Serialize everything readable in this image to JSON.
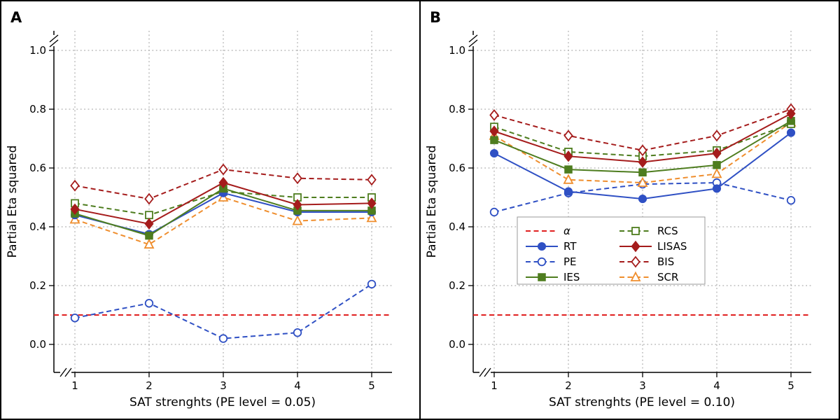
{
  "figure": {
    "background": "#ffffff",
    "border_color": "#000000"
  },
  "colors": {
    "alpha": "#e02020",
    "blue": "#2f50c4",
    "green": "#4e7d1f",
    "darkred": "#a51c1c",
    "orange": "#ef8e2e",
    "grid": "#999999",
    "axis": "#000000",
    "legend_border": "#999999"
  },
  "legend": {
    "columns": 2,
    "rows": 4,
    "entries": [
      {
        "label": "α",
        "series": "alpha",
        "color": "alpha",
        "line": "dashed",
        "marker": "none",
        "fill": "none",
        "italic": true
      },
      {
        "label": "RT",
        "series": "RT",
        "color": "blue",
        "line": "solid",
        "marker": "circle",
        "fill": "filled",
        "italic": false
      },
      {
        "label": "PE",
        "series": "PE",
        "color": "blue",
        "line": "dashed",
        "marker": "circle",
        "fill": "open",
        "italic": false
      },
      {
        "label": "IES",
        "series": "IES",
        "color": "green",
        "line": "solid",
        "marker": "square",
        "fill": "filled",
        "italic": false
      },
      {
        "label": "RCS",
        "series": "RCS",
        "color": "green",
        "line": "dashed",
        "marker": "square",
        "fill": "open",
        "italic": false
      },
      {
        "label": "LISAS",
        "series": "LISAS",
        "color": "darkred",
        "line": "solid",
        "marker": "diamond",
        "fill": "filled",
        "italic": false
      },
      {
        "label": "BIS",
        "series": "BIS",
        "color": "darkred",
        "line": "dashed",
        "marker": "diamond",
        "fill": "open",
        "italic": false
      },
      {
        "label": "SCR",
        "series": "SCR",
        "color": "orange",
        "line": "dashed",
        "marker": "triangle",
        "fill": "open",
        "italic": false
      }
    ]
  },
  "chart_data": [
    {
      "type": "line",
      "panel_label": "A",
      "xlabel": "SAT strenghts (PE level = 0.05)",
      "ylabel": "Partial Eta squared",
      "x": [
        1,
        2,
        3,
        4,
        5
      ],
      "xtick_labels": [
        "1",
        "2",
        "3",
        "4",
        "5"
      ],
      "yticks": [
        0,
        0.2,
        0.4,
        0.6,
        0.8,
        1
      ],
      "ytick_labels": [
        "0.0",
        "0.2",
        "0.4",
        "0.6",
        "0.8",
        "1.0"
      ],
      "ylim": [
        -0.1,
        1.17
      ],
      "grid": "dotted",
      "legend_visible": false,
      "series": [
        {
          "name": "alpha",
          "color": "alpha",
          "line": "dashed",
          "marker": "none",
          "fill": "none",
          "span": "plot",
          "values": [
            0.1,
            0.1,
            0.1,
            0.1,
            0.1
          ]
        },
        {
          "name": "PE",
          "color": "blue",
          "line": "dashed",
          "marker": "circle",
          "fill": "open",
          "span": "data",
          "values": [
            0.09,
            0.14,
            0.02,
            0.04,
            0.205
          ]
        },
        {
          "name": "SCR",
          "color": "orange",
          "line": "dashed",
          "marker": "triangle",
          "fill": "open",
          "span": "data",
          "values": [
            0.425,
            0.34,
            0.5,
            0.42,
            0.43
          ]
        },
        {
          "name": "RCS",
          "color": "green",
          "line": "dashed",
          "marker": "square",
          "fill": "open",
          "span": "data",
          "values": [
            0.48,
            0.44,
            0.52,
            0.5,
            0.5
          ]
        },
        {
          "name": "BIS",
          "color": "darkred",
          "line": "dashed",
          "marker": "diamond",
          "fill": "open",
          "span": "data",
          "values": [
            0.54,
            0.495,
            0.595,
            0.565,
            0.56
          ]
        },
        {
          "name": "RT",
          "color": "blue",
          "line": "solid",
          "marker": "circle",
          "fill": "filled",
          "span": "data",
          "values": [
            0.44,
            0.375,
            0.515,
            0.45,
            0.45
          ]
        },
        {
          "name": "IES",
          "color": "green",
          "line": "solid",
          "marker": "square",
          "fill": "filled",
          "span": "data",
          "values": [
            0.445,
            0.37,
            0.53,
            0.455,
            0.455
          ]
        },
        {
          "name": "LISAS",
          "color": "darkred",
          "line": "solid",
          "marker": "diamond",
          "fill": "filled",
          "span": "data",
          "values": [
            0.46,
            0.41,
            0.55,
            0.475,
            0.48
          ]
        }
      ]
    },
    {
      "type": "line",
      "panel_label": "B",
      "xlabel": "SAT strenghts (PE level = 0.10)",
      "ylabel": "Partial Eta squared",
      "x": [
        1,
        2,
        3,
        4,
        5
      ],
      "xtick_labels": [
        "1",
        "2",
        "3",
        "4",
        "5"
      ],
      "yticks": [
        0,
        0.2,
        0.4,
        0.6,
        0.8,
        1
      ],
      "ytick_labels": [
        "0.0",
        "0.2",
        "0.4",
        "0.6",
        "0.8",
        "1.0"
      ],
      "ylim": [
        -0.1,
        1.17
      ],
      "grid": "dotted",
      "legend_visible": true,
      "series": [
        {
          "name": "alpha",
          "color": "alpha",
          "line": "dashed",
          "marker": "none",
          "fill": "none",
          "span": "plot",
          "values": [
            0.1,
            0.1,
            0.1,
            0.1,
            0.1
          ]
        },
        {
          "name": "PE",
          "color": "blue",
          "line": "dashed",
          "marker": "circle",
          "fill": "open",
          "span": "data",
          "values": [
            0.45,
            0.515,
            0.545,
            0.55,
            0.49
          ]
        },
        {
          "name": "SCR",
          "color": "orange",
          "line": "dashed",
          "marker": "triangle",
          "fill": "open",
          "span": "data",
          "values": [
            0.71,
            0.56,
            0.55,
            0.58,
            0.755
          ]
        },
        {
          "name": "RCS",
          "color": "green",
          "line": "dashed",
          "marker": "square",
          "fill": "open",
          "span": "data",
          "values": [
            0.74,
            0.655,
            0.64,
            0.66,
            0.75
          ]
        },
        {
          "name": "BIS",
          "color": "darkred",
          "line": "dashed",
          "marker": "diamond",
          "fill": "open",
          "span": "data",
          "values": [
            0.78,
            0.71,
            0.66,
            0.71,
            0.8
          ]
        },
        {
          "name": "RT",
          "color": "blue",
          "line": "solid",
          "marker": "circle",
          "fill": "filled",
          "span": "data",
          "values": [
            0.65,
            0.52,
            0.495,
            0.53,
            0.72
          ]
        },
        {
          "name": "IES",
          "color": "green",
          "line": "solid",
          "marker": "square",
          "fill": "filled",
          "span": "data",
          "values": [
            0.695,
            0.595,
            0.585,
            0.61,
            0.76
          ]
        },
        {
          "name": "LISAS",
          "color": "darkred",
          "line": "solid",
          "marker": "diamond",
          "fill": "filled",
          "span": "data",
          "values": [
            0.725,
            0.64,
            0.62,
            0.65,
            0.785
          ]
        }
      ]
    }
  ]
}
